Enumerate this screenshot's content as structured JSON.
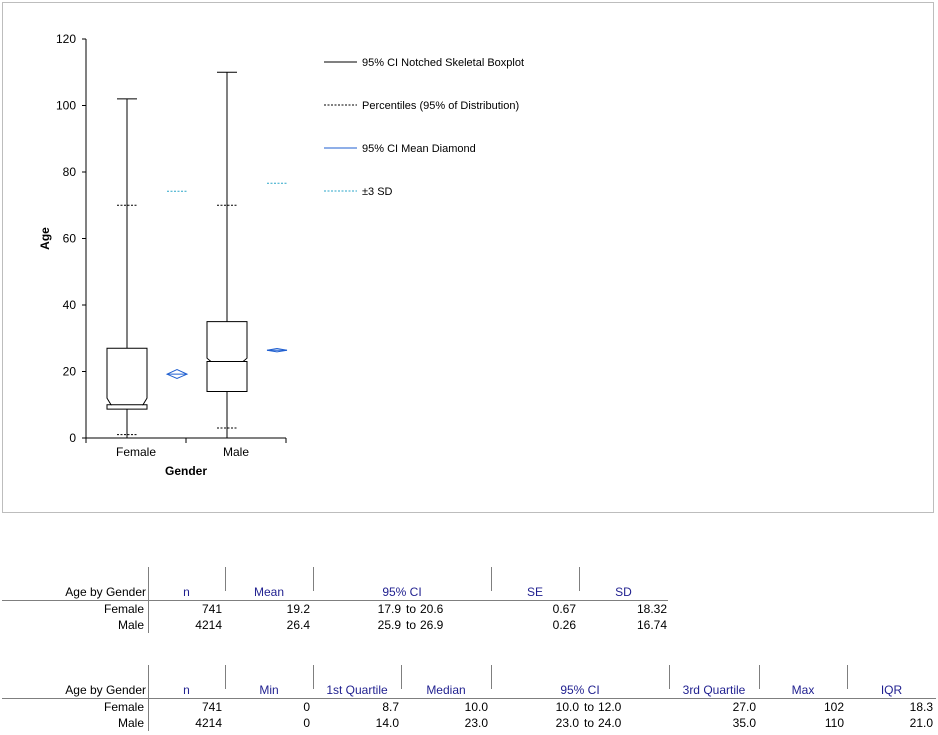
{
  "chart_data": {
    "type": "boxplot",
    "xlabel": "Gender",
    "ylabel": "Age",
    "ylim": [
      0,
      120
    ],
    "yticks": [
      0,
      20,
      40,
      60,
      80,
      100,
      120
    ],
    "categories": [
      "Female",
      "Male"
    ],
    "boxes": [
      {
        "name": "Female",
        "min": 0,
        "p2_5": 1,
        "q1": 8.7,
        "median": 10.0,
        "notch_low": 10.0,
        "notch_high": 12.0,
        "q3": 27.0,
        "p97_5": 70,
        "max": 102,
        "mean": 19.2,
        "mean_ci_low": 17.9,
        "mean_ci_high": 20.6,
        "sd3_high": 74.2
      },
      {
        "name": "Male",
        "min": 0,
        "p2_5": 3,
        "q1": 14.0,
        "median": 23.0,
        "notch_low": 23.0,
        "notch_high": 24.0,
        "q3": 35.0,
        "p97_5": 70,
        "max": 110,
        "mean": 26.4,
        "mean_ci_low": 25.9,
        "mean_ci_high": 26.9,
        "sd3_high": 76.6
      }
    ],
    "legend": [
      {
        "label": "95% CI Notched Skeletal Boxplot",
        "color": "#000000",
        "style": "solid"
      },
      {
        "label": "Percentiles (95% of Distribution)",
        "color": "#000000",
        "style": "dashed"
      },
      {
        "label": "95% CI Mean Diamond",
        "color": "#1f5fd0",
        "style": "solid"
      },
      {
        "label": "±3 SD",
        "color": "#2aa6c8",
        "style": "dashed"
      }
    ],
    "legend_position": "top-right"
  },
  "table1": {
    "row_header": "Age by Gender",
    "columns": [
      "n",
      "Mean",
      "95% CI",
      "SE",
      "SD"
    ],
    "rows": [
      {
        "label": "Female",
        "n": "741",
        "mean": "19.2",
        "ci_low": "17.9",
        "to": "to",
        "ci_high": "20.6",
        "se": "0.67",
        "sd": "18.32"
      },
      {
        "label": "Male",
        "n": "4214",
        "mean": "26.4",
        "ci_low": "25.9",
        "to": "to",
        "ci_high": "26.9",
        "se": "0.26",
        "sd": "16.74"
      }
    ]
  },
  "table2": {
    "row_header": "Age by Gender",
    "columns": [
      "n",
      "Min",
      "1st Quartile",
      "Median",
      "95% CI",
      "3rd Quartile",
      "Max",
      "IQR"
    ],
    "rows": [
      {
        "label": "Female",
        "n": "741",
        "min": "0",
        "q1": "8.7",
        "median": "10.0",
        "ci_low": "10.0",
        "to": "to",
        "ci_high": "12.0",
        "q3": "27.0",
        "max": "102",
        "iqr": "18.3"
      },
      {
        "label": "Male",
        "n": "4214",
        "min": "0",
        "q1": "14.0",
        "median": "23.0",
        "ci_low": "23.0",
        "to": "to",
        "ci_high": "24.0",
        "q3": "35.0",
        "max": "110",
        "iqr": "21.0"
      }
    ]
  }
}
